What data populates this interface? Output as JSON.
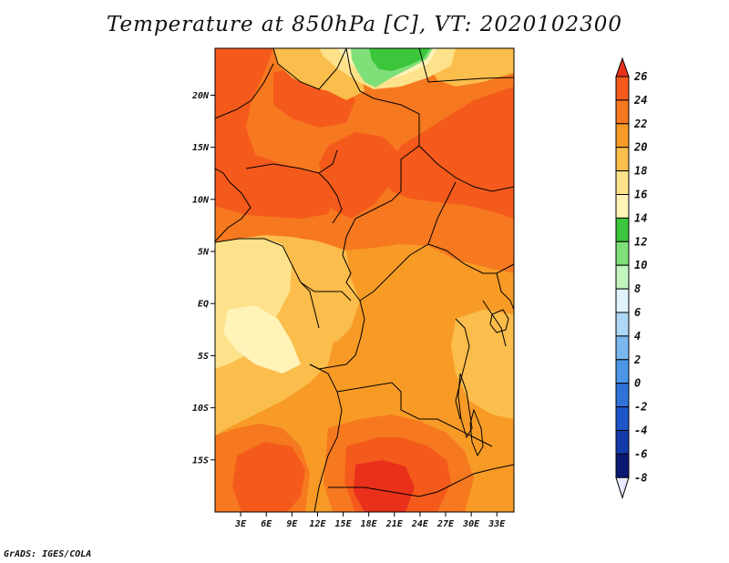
{
  "title": "Temperature at 850hPa [C], VT: 2020102300",
  "credit": "GrADS: IGES/COLA",
  "map": {
    "lon_range": [
      0,
      35
    ],
    "lat_range": [
      -20,
      24.5
    ],
    "lat_labels": [
      {
        "lat": 20,
        "text": "20N"
      },
      {
        "lat": 15,
        "text": "15N"
      },
      {
        "lat": 10,
        "text": "10N"
      },
      {
        "lat": 5,
        "text": "5N"
      },
      {
        "lat": 0,
        "text": "EQ"
      },
      {
        "lat": -5,
        "text": "5S"
      },
      {
        "lat": -10,
        "text": "10S"
      },
      {
        "lat": -15,
        "text": "15S"
      }
    ],
    "lon_labels": [
      {
        "lon": 3,
        "text": "3E"
      },
      {
        "lon": 6,
        "text": "6E"
      },
      {
        "lon": 9,
        "text": "9E"
      },
      {
        "lon": 12,
        "text": "12E"
      },
      {
        "lon": 15,
        "text": "15E"
      },
      {
        "lon": 18,
        "text": "18E"
      },
      {
        "lon": 21,
        "text": "21E"
      },
      {
        "lon": 24,
        "text": "24E"
      },
      {
        "lon": 27,
        "text": "27E"
      },
      {
        "lon": 30,
        "text": "30E"
      },
      {
        "lon": 33,
        "text": "33E"
      }
    ]
  },
  "colorbar": {
    "levels": [
      {
        "label": "26",
        "color": "#e8301b"
      },
      {
        "label": "24",
        "color": "#f45a1b"
      },
      {
        "label": "22",
        "color": "#f6781f"
      },
      {
        "label": "20",
        "color": "#f79b26"
      },
      {
        "label": "18",
        "color": "#fbbd4b"
      },
      {
        "label": "16",
        "color": "#fde28b"
      },
      {
        "label": "14",
        "color": "#fff3b8"
      },
      {
        "label": "12",
        "color": "#3bc63b"
      },
      {
        "label": "10",
        "color": "#7fe07a"
      },
      {
        "label": "8",
        "color": "#c2f5bd"
      },
      {
        "label": "6",
        "color": "#dff4fb"
      },
      {
        "label": "4",
        "color": "#aed7f5"
      },
      {
        "label": "2",
        "color": "#7ab7ef"
      },
      {
        "label": "0",
        "color": "#4b96e6"
      },
      {
        "label": "-2",
        "color": "#2f73d8"
      },
      {
        "label": "-4",
        "color": "#1d55c8"
      },
      {
        "label": "-6",
        "color": "#123aa8"
      },
      {
        "label": "-8",
        "color": "#0a1a74"
      }
    ],
    "min_color": "#e6e9ff"
  }
}
